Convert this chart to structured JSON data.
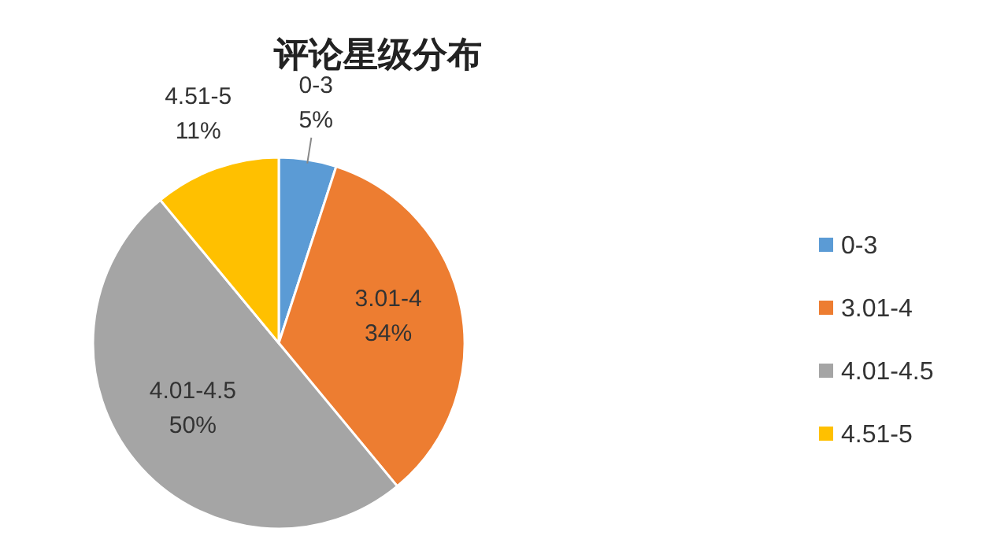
{
  "chart_data": {
    "type": "pie",
    "title": "评论星级分布",
    "categories": [
      "0-3",
      "3.01-4",
      "4.01-4.5",
      "4.51-5"
    ],
    "values": [
      5,
      34,
      50,
      11
    ],
    "colors": [
      "#5b9bd5",
      "#ed7d31",
      "#a5a5a5",
      "#ffc000"
    ],
    "value_labels": [
      "5%",
      "34%",
      "50%",
      "11%"
    ],
    "legend": "right"
  }
}
